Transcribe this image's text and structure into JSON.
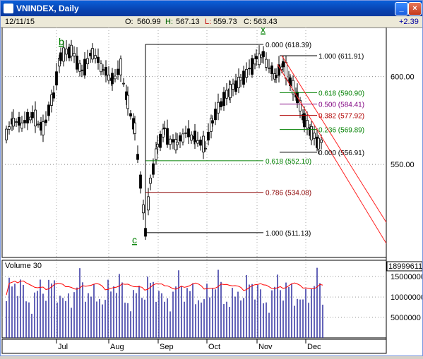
{
  "window": {
    "title": "VNINDEX, Daily"
  },
  "quote": {
    "date": "12/11/15",
    "open_label": "O:",
    "open": "560.99",
    "high_label": "H:",
    "high": "567.13",
    "low_label": "L:",
    "low": "559.73",
    "close_label": "C:",
    "close": "563.43",
    "change": "+2.39",
    "colors": {
      "high": "#006400",
      "low": "#c00000"
    }
  },
  "chart_data": {
    "type": "candlestick",
    "price_axis": {
      "ylim": [
        497,
        628
      ],
      "ticks": [
        600,
        550
      ],
      "tick_labels": [
        "600.00",
        "550.00"
      ]
    },
    "time_axis": {
      "labels": [
        "Jul",
        "Aug",
        "Sep",
        "Oct",
        "Nov",
        "Dec"
      ]
    },
    "wave_labels": [
      "b",
      "c",
      "x"
    ],
    "fib_left": [
      {
        "label": "0.000 (618.39)",
        "value": 618.39,
        "color": "#000000"
      },
      {
        "label": "0.618 (552.10)",
        "value": 552.1,
        "color": "#008000"
      },
      {
        "label": "0.786 (534.08)",
        "value": 534.08,
        "color": "#8b0000"
      },
      {
        "label": "1.000 (511.13)",
        "value": 511.13,
        "color": "#000000"
      }
    ],
    "fib_right": [
      {
        "label": "1.000 (611.91)",
        "value": 611.91,
        "color": "#000000"
      },
      {
        "label": "0.618 (590.90)",
        "value": 590.9,
        "color": "#008000"
      },
      {
        "label": "0.500 (584.41)",
        "value": 584.41,
        "color": "#800080"
      },
      {
        "label": "0.382 (577.92)",
        "value": 577.92,
        "color": "#b00000"
      },
      {
        "label": "0.236 (569.89)",
        "value": 569.89,
        "color": "#008000"
      },
      {
        "label": "0.000 (556.91)",
        "value": 556.91,
        "color": "#000000"
      }
    ],
    "volume": {
      "title": "Volume 30",
      "last_value_label": "18999611.0",
      "ylim": [
        0,
        19000000
      ],
      "ticks": [
        15000000,
        10000000,
        5000000
      ],
      "tick_labels": [
        "15000000",
        "10000000",
        "5000000"
      ],
      "bar_color": "#3030a0",
      "ma_color": "#ff0000"
    }
  }
}
